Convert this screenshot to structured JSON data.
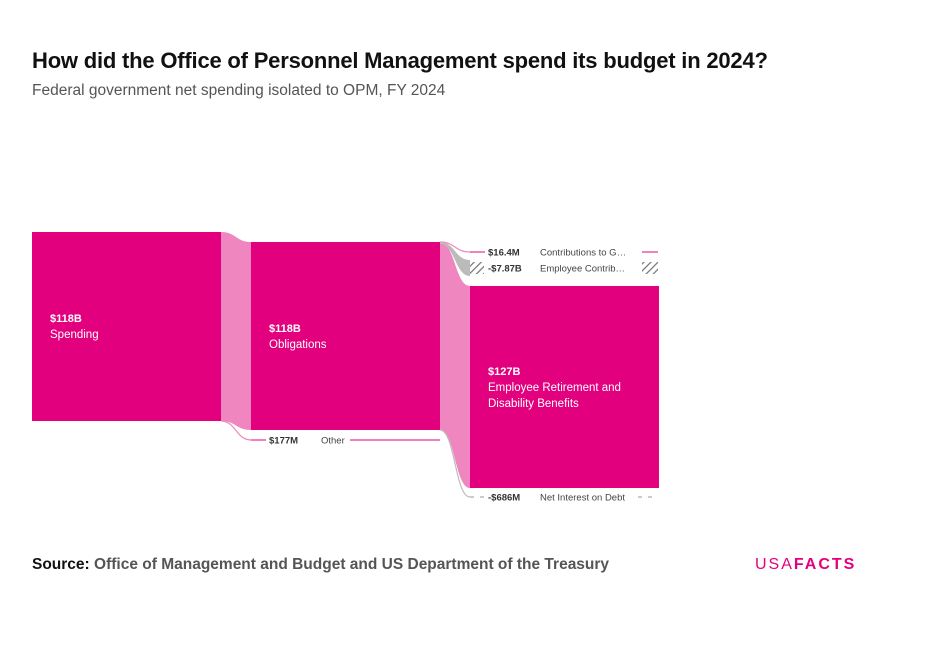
{
  "header": {
    "title": "How did the Office of Personnel Management spend its budget in 2024?",
    "subtitle": "Federal government net spending isolated to OPM, FY 2024"
  },
  "footer": {
    "source_label": "Source:",
    "source_text": "Office of Management and Budget and US Department of the Treasury",
    "logo_light": "USA",
    "logo_bold": "FACTS"
  },
  "colors": {
    "node": "#e3007e",
    "flow": "#f086c0",
    "negative": "#bbbbbb",
    "text": "#333333"
  },
  "chart_data": {
    "type": "sankey",
    "title": "How did the Office of Personnel Management spend its budget in 2024?",
    "subtitle": "Federal government net spending isolated to OPM, FY 2024",
    "units": "USD",
    "nodes": [
      {
        "id": "spending",
        "label": "Spending",
        "value_label": "$118B",
        "value": 118000000000,
        "column": 0
      },
      {
        "id": "obligations",
        "label": "Obligations",
        "value_label": "$118B",
        "value": 118000000000,
        "column": 1
      },
      {
        "id": "other",
        "label": "Other",
        "value_label": "$177M",
        "value": 177000000,
        "column": 1
      },
      {
        "id": "contrib_gov",
        "label": "Contributions to G…",
        "value_label": "$16.4M",
        "value": 16400000,
        "column": 2
      },
      {
        "id": "employee_contrib",
        "label": "Employee Contrib…",
        "value_label": "-$7.87B",
        "value": -7870000000,
        "column": 2
      },
      {
        "id": "retirement",
        "label": "Employee Retirement and Disability Benefits",
        "value_label": "$127B",
        "value": 127000000000,
        "column": 2
      },
      {
        "id": "net_interest",
        "label": "Net Interest on Debt",
        "value_label": "-$686M",
        "value": -686000000,
        "column": 2
      }
    ],
    "links": [
      {
        "source": "spending",
        "target": "obligations",
        "value": 118000000000
      },
      {
        "source": "spending",
        "target": "other",
        "value": 177000000
      },
      {
        "source": "obligations",
        "target": "contrib_gov",
        "value": 16400000
      },
      {
        "source": "obligations",
        "target": "employee_contrib",
        "value": -7870000000
      },
      {
        "source": "obligations",
        "target": "retirement",
        "value": 127000000000
      },
      {
        "source": "obligations",
        "target": "net_interest",
        "value": -686000000
      }
    ]
  }
}
